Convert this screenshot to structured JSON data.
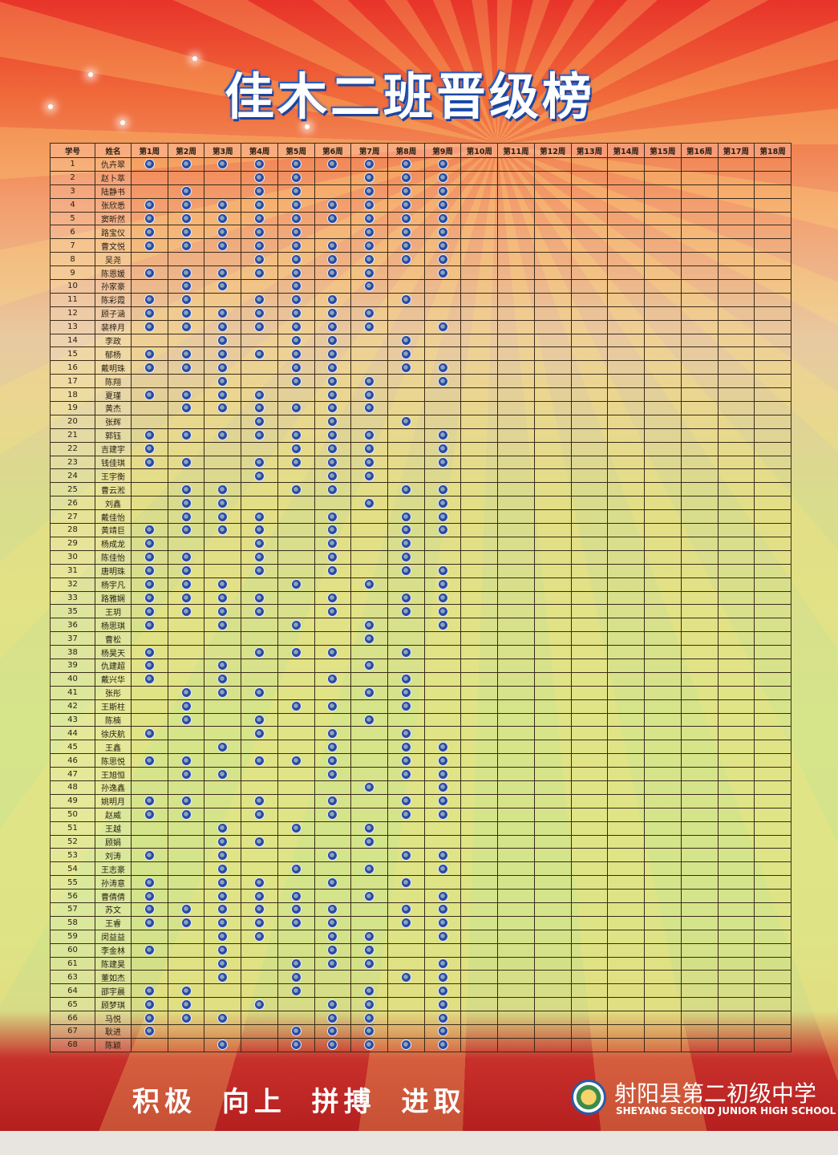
{
  "poster": {
    "title": "佳木二班晋级榜",
    "slogan": "积极 向上 拼搏 进取",
    "school_name_cn": "射阳县第二初级中学",
    "school_name_en": "SHEYANG SECOND JUNIOR HIGH SCHOOL",
    "colors": {
      "top": "#e8332a",
      "middle": "#d6e48a",
      "bottom": "#b51f1f",
      "sticker": "#2a4aa0"
    }
  },
  "table": {
    "headers": [
      "学号",
      "姓名",
      "第1周",
      "第2周",
      "第3周",
      "第4周",
      "第5周",
      "第6周",
      "第7周",
      "第8周",
      "第9周",
      "第10周",
      "第11周",
      "第12周",
      "第13周",
      "第14周",
      "第15周",
      "第16周",
      "第17周",
      "第18周"
    ],
    "rows": [
      {
        "no": "1",
        "name": "仇卉翠",
        "weeks": [
          1,
          2,
          3,
          4,
          5,
          6,
          7,
          8,
          9
        ]
      },
      {
        "no": "2",
        "name": "赵卜萃",
        "weeks": [
          4,
          5,
          7,
          8,
          9
        ]
      },
      {
        "no": "3",
        "name": "陆静书",
        "weeks": [
          2,
          4,
          5,
          7,
          8,
          9
        ]
      },
      {
        "no": "4",
        "name": "张欣悉",
        "weeks": [
          1,
          2,
          3,
          4,
          5,
          6,
          7,
          8,
          9
        ]
      },
      {
        "no": "5",
        "name": "窦昕然",
        "weeks": [
          1,
          2,
          3,
          4,
          5,
          6,
          7,
          8,
          9
        ]
      },
      {
        "no": "6",
        "name": "路宝仪",
        "weeks": [
          1,
          2,
          3,
          4,
          5,
          7,
          8,
          9
        ]
      },
      {
        "no": "7",
        "name": "曹文悦",
        "weeks": [
          1,
          2,
          3,
          4,
          5,
          6,
          7,
          8,
          9
        ]
      },
      {
        "no": "8",
        "name": "吴尧",
        "weeks": [
          4,
          5,
          6,
          7,
          8,
          9
        ]
      },
      {
        "no": "9",
        "name": "陈恩媛",
        "weeks": [
          1,
          2,
          3,
          4,
          5,
          6,
          7,
          9
        ]
      },
      {
        "no": "10",
        "name": "孙家豪",
        "weeks": [
          2,
          3,
          5,
          7
        ]
      },
      {
        "no": "11",
        "name": "陈彩霞",
        "weeks": [
          1,
          2,
          4,
          5,
          6,
          8
        ]
      },
      {
        "no": "12",
        "name": "顾子涵",
        "weeks": [
          1,
          2,
          3,
          4,
          5,
          6,
          7
        ]
      },
      {
        "no": "13",
        "name": "裴梓月",
        "weeks": [
          1,
          2,
          3,
          4,
          5,
          6,
          7,
          9
        ]
      },
      {
        "no": "14",
        "name": "李政",
        "weeks": [
          3,
          5,
          6,
          8
        ]
      },
      {
        "no": "15",
        "name": "郁杨",
        "weeks": [
          1,
          2,
          3,
          4,
          5,
          6,
          8
        ]
      },
      {
        "no": "16",
        "name": "戴明珠",
        "weeks": [
          1,
          2,
          3,
          5,
          6,
          8,
          9
        ]
      },
      {
        "no": "17",
        "name": "陈翔",
        "weeks": [
          3,
          5,
          6,
          7,
          9
        ]
      },
      {
        "no": "18",
        "name": "夏瑾",
        "weeks": [
          1,
          2,
          3,
          4,
          6,
          7
        ]
      },
      {
        "no": "19",
        "name": "黄杰",
        "weeks": [
          2,
          3,
          4,
          5,
          6,
          7
        ]
      },
      {
        "no": "20",
        "name": "张辉",
        "weeks": [
          4,
          6,
          8
        ]
      },
      {
        "no": "21",
        "name": "郭钰",
        "weeks": [
          1,
          2,
          3,
          4,
          5,
          6,
          7,
          9
        ]
      },
      {
        "no": "22",
        "name": "吉建宇",
        "weeks": [
          1,
          5,
          6,
          7,
          9
        ]
      },
      {
        "no": "23",
        "name": "钱佳琪",
        "weeks": [
          1,
          2,
          4,
          5,
          6,
          7,
          9
        ]
      },
      {
        "no": "24",
        "name": "王宇衡",
        "weeks": [
          4,
          6,
          7
        ]
      },
      {
        "no": "25",
        "name": "曹云淞",
        "weeks": [
          2,
          3,
          5,
          6,
          8,
          9
        ]
      },
      {
        "no": "26",
        "name": "刘鑫",
        "weeks": [
          2,
          3,
          7,
          9
        ]
      },
      {
        "no": "27",
        "name": "戴佳怡",
        "weeks": [
          2,
          3,
          4,
          6,
          8,
          9
        ]
      },
      {
        "no": "28",
        "name": "黄靖巨",
        "weeks": [
          1,
          2,
          3,
          4,
          6,
          8,
          9
        ]
      },
      {
        "no": "29",
        "name": "杨成龙",
        "weeks": [
          1,
          4,
          6,
          8
        ]
      },
      {
        "no": "30",
        "name": "陈佳怡",
        "weeks": [
          1,
          2,
          4,
          6,
          8
        ]
      },
      {
        "no": "31",
        "name": "唐明珠",
        "weeks": [
          1,
          2,
          4,
          6,
          8,
          9
        ]
      },
      {
        "no": "32",
        "name": "杨宇凡",
        "weeks": [
          1,
          2,
          3,
          5,
          7,
          9
        ]
      },
      {
        "no": "33",
        "name": "路雅娴",
        "weeks": [
          1,
          2,
          3,
          4,
          6,
          8,
          9
        ]
      },
      {
        "no": "35",
        "name": "王玥",
        "weeks": [
          1,
          2,
          3,
          4,
          6,
          8,
          9
        ]
      },
      {
        "no": "36",
        "name": "杨思琪",
        "weeks": [
          1,
          3,
          5,
          7,
          9
        ]
      },
      {
        "no": "37",
        "name": "曹松",
        "weeks": [
          7
        ]
      },
      {
        "no": "38",
        "name": "杨昊天",
        "weeks": [
          1,
          4,
          5,
          6,
          8
        ]
      },
      {
        "no": "39",
        "name": "仇建超",
        "weeks": [
          1,
          3,
          7
        ]
      },
      {
        "no": "40",
        "name": "戴兴华",
        "weeks": [
          1,
          3,
          6,
          8
        ]
      },
      {
        "no": "41",
        "name": "张彤",
        "weeks": [
          2,
          3,
          4,
          7,
          8
        ]
      },
      {
        "no": "42",
        "name": "王斯柱",
        "weeks": [
          2,
          5,
          6,
          8
        ]
      },
      {
        "no": "43",
        "name": "陈楠",
        "weeks": [
          2,
          4,
          7
        ]
      },
      {
        "no": "44",
        "name": "徐庆航",
        "weeks": [
          1,
          4,
          6,
          8
        ]
      },
      {
        "no": "45",
        "name": "王鑫",
        "weeks": [
          3,
          6,
          8,
          9
        ]
      },
      {
        "no": "46",
        "name": "陈思悦",
        "weeks": [
          1,
          2,
          4,
          5,
          6,
          8,
          9
        ]
      },
      {
        "no": "47",
        "name": "王旭恒",
        "weeks": [
          2,
          3,
          6,
          8,
          9
        ]
      },
      {
        "no": "48",
        "name": "孙逸鑫",
        "weeks": [
          7,
          9
        ]
      },
      {
        "no": "49",
        "name": "姚明月",
        "weeks": [
          1,
          2,
          4,
          6,
          8,
          9
        ]
      },
      {
        "no": "50",
        "name": "赵威",
        "weeks": [
          1,
          2,
          4,
          6,
          8,
          9
        ]
      },
      {
        "no": "51",
        "name": "王越",
        "weeks": [
          3,
          5,
          7
        ]
      },
      {
        "no": "52",
        "name": "顾娟",
        "weeks": [
          3,
          4,
          7
        ]
      },
      {
        "no": "53",
        "name": "刘涛",
        "weeks": [
          1,
          3,
          6,
          8,
          9
        ]
      },
      {
        "no": "54",
        "name": "王志豪",
        "weeks": [
          3,
          5,
          7,
          9
        ]
      },
      {
        "no": "55",
        "name": "孙涛意",
        "weeks": [
          1,
          3,
          4,
          6,
          8
        ]
      },
      {
        "no": "56",
        "name": "曹倩倩",
        "weeks": [
          1,
          3,
          4,
          5,
          7,
          9
        ]
      },
      {
        "no": "57",
        "name": "苏文",
        "weeks": [
          1,
          2,
          3,
          4,
          5,
          6,
          8,
          9
        ]
      },
      {
        "no": "58",
        "name": "王睿",
        "weeks": [
          1,
          2,
          3,
          4,
          5,
          6,
          8,
          9
        ]
      },
      {
        "no": "59",
        "name": "闵益益",
        "weeks": [
          3,
          4,
          6,
          7,
          9
        ]
      },
      {
        "no": "60",
        "name": "李金林",
        "weeks": [
          1,
          3,
          6,
          7
        ]
      },
      {
        "no": "61",
        "name": "陈建昊",
        "weeks": [
          3,
          5,
          6,
          7,
          9
        ]
      },
      {
        "no": "63",
        "name": "董如杰",
        "weeks": [
          3,
          5,
          8,
          9
        ]
      },
      {
        "no": "64",
        "name": "邵宇晨",
        "weeks": [
          1,
          2,
          5,
          7,
          9
        ]
      },
      {
        "no": "65",
        "name": "顾梦琪",
        "weeks": [
          1,
          2,
          4,
          6,
          7,
          9
        ]
      },
      {
        "no": "66",
        "name": "马悦",
        "weeks": [
          1,
          2,
          3,
          6,
          7,
          9
        ]
      },
      {
        "no": "67",
        "name": "耿进",
        "weeks": [
          1,
          5,
          6,
          7,
          9
        ]
      },
      {
        "no": "68",
        "name": "陈颖",
        "weeks": [
          3,
          5,
          6,
          7,
          8,
          9
        ]
      }
    ]
  }
}
